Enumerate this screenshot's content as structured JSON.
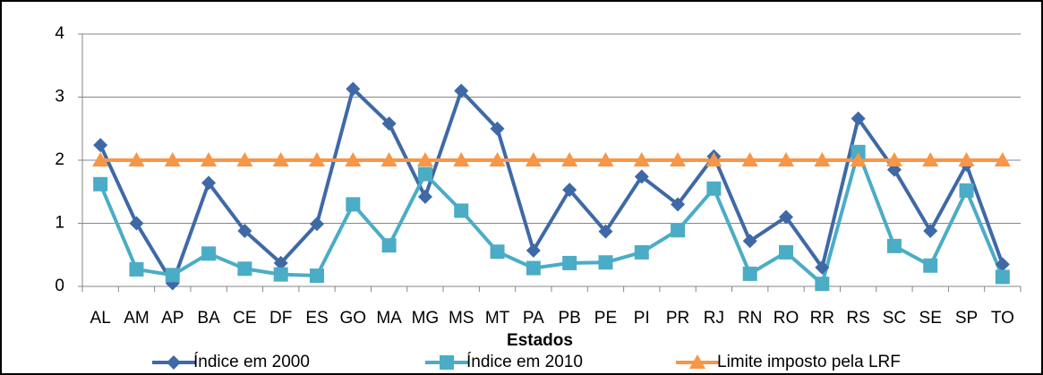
{
  "chart_data": {
    "type": "line",
    "x_label": "Estados",
    "categories": [
      "AL",
      "AM",
      "AP",
      "BA",
      "CE",
      "DF",
      "ES",
      "GO",
      "MA",
      "MG",
      "MS",
      "MT",
      "PA",
      "PB",
      "PE",
      "PI",
      "PR",
      "RJ",
      "RN",
      "RO",
      "RR",
      "RS",
      "SC",
      "SE",
      "SP",
      "TO"
    ],
    "series": [
      {
        "name": "Índice em 2000",
        "color": "#3f69a6",
        "marker": "diamond",
        "values": [
          2.24,
          1.0,
          0.05,
          1.64,
          0.88,
          0.37,
          0.99,
          3.13,
          2.58,
          1.42,
          3.1,
          2.5,
          0.57,
          1.53,
          0.87,
          1.74,
          1.3,
          2.06,
          0.72,
          1.1,
          0.3,
          2.66,
          1.85,
          0.88,
          1.93,
          0.35
        ]
      },
      {
        "name": "Índice em 2010",
        "color": "#4bacc6",
        "marker": "square",
        "values": [
          1.62,
          0.27,
          0.18,
          0.52,
          0.28,
          0.19,
          0.17,
          1.3,
          0.65,
          1.78,
          1.2,
          0.55,
          0.29,
          0.37,
          0.38,
          0.54,
          0.89,
          1.55,
          0.2,
          0.54,
          0.04,
          2.13,
          0.64,
          0.33,
          1.52,
          0.15
        ]
      },
      {
        "name": "Limite imposto pela LRF",
        "color": "#f79646",
        "marker": "triangle",
        "values": [
          2,
          2,
          2,
          2,
          2,
          2,
          2,
          2,
          2,
          2,
          2,
          2,
          2,
          2,
          2,
          2,
          2,
          2,
          2,
          2,
          2,
          2,
          2,
          2,
          2,
          2
        ]
      }
    ],
    "ylim": [
      0,
      4
    ],
    "yticks": [
      0,
      1,
      2,
      3,
      4
    ],
    "grid": true,
    "legend": "bottom"
  }
}
